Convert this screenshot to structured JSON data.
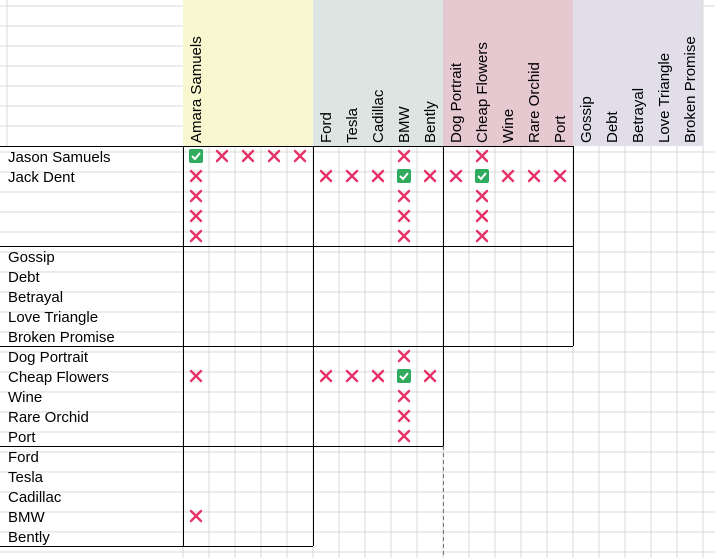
{
  "column_groups": [
    {
      "color": "#f7f7d0",
      "columns": [
        "Amara Samuels",
        null,
        null,
        null,
        null
      ]
    },
    {
      "color": "#dde5e2",
      "columns": [
        "Ford",
        "Tesla",
        "Cadillac",
        "BMW",
        "Bently"
      ]
    },
    {
      "color": "#e6c8d1",
      "columns": [
        "Dog Portrait",
        "Cheap Flowers",
        "Wine",
        "Rare Orchid",
        "Port"
      ]
    },
    {
      "color": "#e1deea",
      "columns": [
        "Gossip",
        "Debt",
        "Betrayal",
        "Love Triangle",
        "Broken Promise"
      ]
    }
  ],
  "row_groups": [
    {
      "rows": [
        {
          "label": "Jason Samuels",
          "cells": [
            "check",
            "x",
            "x",
            "x",
            "x",
            null,
            null,
            null,
            "x",
            null,
            null,
            "x",
            null,
            null,
            null
          ]
        },
        {
          "label": "Jack Dent",
          "cells": [
            "x",
            null,
            null,
            null,
            null,
            "x",
            "x",
            "x",
            "check",
            "x",
            "x",
            "check",
            "x",
            "x",
            "x"
          ]
        },
        {
          "label": null,
          "cells": [
            "x",
            null,
            null,
            null,
            null,
            null,
            null,
            null,
            "x",
            null,
            null,
            "x",
            null,
            null,
            null
          ]
        },
        {
          "label": null,
          "cells": [
            "x",
            null,
            null,
            null,
            null,
            null,
            null,
            null,
            "x",
            null,
            null,
            "x",
            null,
            null,
            null
          ]
        },
        {
          "label": null,
          "cells": [
            "x",
            null,
            null,
            null,
            null,
            null,
            null,
            null,
            "x",
            null,
            null,
            "x",
            null,
            null,
            null
          ]
        }
      ]
    },
    {
      "rows": [
        {
          "label": "Gossip",
          "cells": [
            null,
            null,
            null,
            null,
            null,
            null,
            null,
            null,
            null,
            null,
            null,
            null,
            null,
            null,
            null
          ]
        },
        {
          "label": "Debt",
          "cells": [
            null,
            null,
            null,
            null,
            null,
            null,
            null,
            null,
            null,
            null,
            null,
            null,
            null,
            null,
            null
          ]
        },
        {
          "label": "Betrayal",
          "cells": [
            null,
            null,
            null,
            null,
            null,
            null,
            null,
            null,
            null,
            null,
            null,
            null,
            null,
            null,
            null
          ]
        },
        {
          "label": "Love Triangle",
          "cells": [
            null,
            null,
            null,
            null,
            null,
            null,
            null,
            null,
            null,
            null,
            null,
            null,
            null,
            null,
            null
          ]
        },
        {
          "label": "Broken Promise",
          "cells": [
            null,
            null,
            null,
            null,
            null,
            null,
            null,
            null,
            null,
            null,
            null,
            null,
            null,
            null,
            null
          ]
        }
      ]
    },
    {
      "rows": [
        {
          "label": "Dog Portrait",
          "cells": [
            null,
            null,
            null,
            null,
            null,
            null,
            null,
            null,
            "x",
            null
          ]
        },
        {
          "label": "Cheap Flowers",
          "cells": [
            "x",
            null,
            null,
            null,
            null,
            "x",
            "x",
            "x",
            "check",
            "x"
          ]
        },
        {
          "label": "Wine",
          "cells": [
            null,
            null,
            null,
            null,
            null,
            null,
            null,
            null,
            "x",
            null
          ]
        },
        {
          "label": "Rare Orchid",
          "cells": [
            null,
            null,
            null,
            null,
            null,
            null,
            null,
            null,
            "x",
            null
          ]
        },
        {
          "label": "Port",
          "cells": [
            null,
            null,
            null,
            null,
            null,
            null,
            null,
            null,
            "x",
            null
          ]
        }
      ]
    },
    {
      "rows": [
        {
          "label": "Ford",
          "cells": [
            null,
            null,
            null,
            null,
            null
          ]
        },
        {
          "label": "Tesla",
          "cells": [
            null,
            null,
            null,
            null,
            null
          ]
        },
        {
          "label": "Cadillac",
          "cells": [
            null,
            null,
            null,
            null,
            null
          ]
        },
        {
          "label": "BMW",
          "cells": [
            "x",
            null,
            null,
            null,
            null
          ]
        },
        {
          "label": "Bently",
          "cells": [
            null,
            null,
            null,
            null,
            null
          ]
        }
      ]
    }
  ]
}
